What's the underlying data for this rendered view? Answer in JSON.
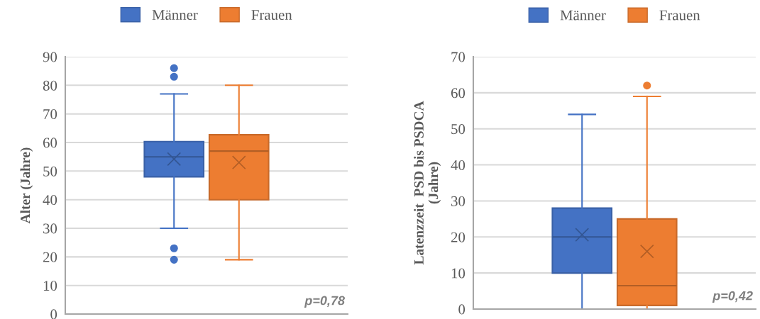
{
  "chart_data": [
    {
      "type": "box",
      "ylabel": "Alter (Jahre)",
      "categories": [
        null
      ],
      "ylim": [
        0,
        90
      ],
      "yticks": [
        0,
        10,
        20,
        30,
        40,
        50,
        60,
        70,
        80,
        90
      ],
      "grid": "y",
      "legend": "top",
      "tick_labels": "y",
      "annotations": [
        "p=0,78"
      ],
      "series": [
        {
          "name": "Männer",
          "color": "#4472c4",
          "boxes": [
            {
              "low": 30,
              "q1": 48,
              "median": 55,
              "q3": 60.3,
              "high": 77,
              "mean": 54.2,
              "outliers": [
                86,
                83,
                23,
                19
              ]
            }
          ]
        },
        {
          "name": "Frauen",
          "color": "#ed7d31",
          "boxes": [
            {
              "low": 19,
              "q1": 40,
              "median": 57,
              "q3": 62.7,
              "high": 80,
              "mean": 53
            }
          ]
        }
      ]
    },
    {
      "type": "box",
      "ylabel": "Latenzzeit  PSD bis PSDCA\n(Jahre)",
      "categories": [
        null
      ],
      "ylim": [
        0,
        70
      ],
      "yticks": [
        0,
        10,
        20,
        30,
        40,
        50,
        60,
        70
      ],
      "grid": "y",
      "legend": "top",
      "tick_labels": "y",
      "annotations": [
        "p=0,42"
      ],
      "series": [
        {
          "name": "Männer",
          "color": "#4472c4",
          "boxes": [
            {
              "low": 0,
              "q1": 10,
              "median": 20,
              "q3": 28,
              "high": 54,
              "mean": 20.6
            }
          ]
        },
        {
          "name": "Frauen",
          "color": "#ed7d31",
          "boxes": [
            {
              "low": 0,
              "q1": 1,
              "median": 6.5,
              "q3": 25,
              "high": 59,
              "mean": 16,
              "outliers": [
                62
              ]
            }
          ]
        }
      ]
    }
  ]
}
